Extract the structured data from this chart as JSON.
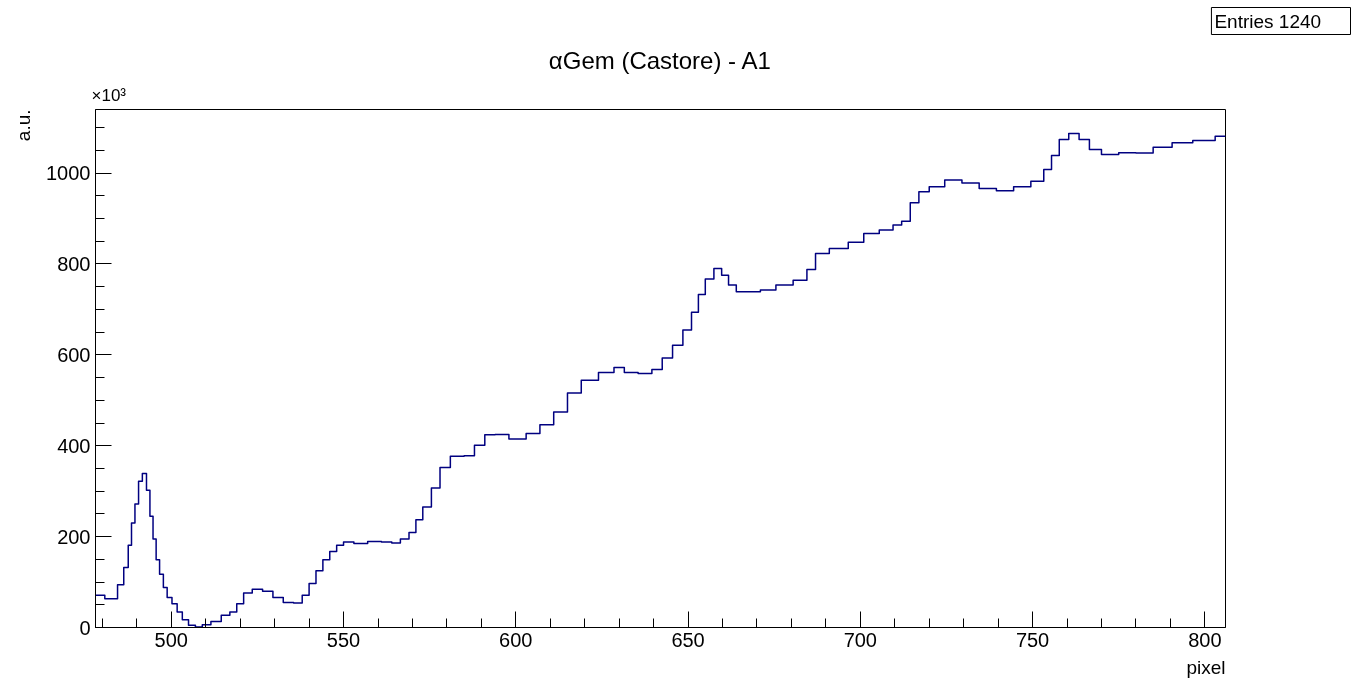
{
  "chart_data": {
    "type": "step",
    "title": "αGem (Castore) - A1",
    "xlabel": "pixel",
    "ylabel": "a.u.",
    "annotations": [
      "×10³",
      "Entries      1240"
    ],
    "xlim": [
      478,
      806
    ],
    "ylim": [
      0,
      1140
    ],
    "xticks": [
      500,
      550,
      600,
      650,
      700,
      750,
      800
    ],
    "yticks": [
      0,
      200,
      400,
      600,
      800,
      1000
    ],
    "grid": false,
    "line_style": "solid",
    "series": [
      {
        "color": "#000080",
        "x": [
          478,
          483.4,
          485.4,
          487,
          488,
          488.9,
          490,
          491,
          492.2,
          493.4,
          494.2,
          495.2,
          496,
          497.2,
          498.2,
          499.4,
          501,
          502.4,
          504,
          506,
          508,
          510,
          513,
          516,
          518,
          520,
          522,
          525,
          528,
          531,
          534,
          537,
          539,
          541,
          543,
          545,
          547,
          549,
          551,
          555,
          559,
          563,
          565,
          568,
          570,
          572,
          574,
          577,
          579,
          583,
          587,
          589,
          593,
          595,
          601,
          605,
          609,
          613,
          617,
          621,
          627,
          630,
          633,
          638,
          641,
          644,
          647,
          650,
          652,
          654,
          656,
          659,
          660.5,
          663,
          665,
          669,
          673,
          678,
          683,
          686,
          688,
          694,
          699,
          703,
          708,
          711,
          713,
          716,
          718,
          722,
          727,
          732,
          737,
          742,
          747,
          752,
          754.5,
          756.5,
          759,
          762,
          765,
          768,
          772,
          778,
          782,
          788,
          793,
          800,
          806
        ],
        "values": [
          71,
          63,
          94,
          132,
          181,
          230,
          272,
          322,
          339,
          302,
          245,
          195,
          149,
          117,
          88,
          66,
          52,
          34,
          17,
          5,
          1,
          6,
          13,
          27,
          34,
          52,
          76,
          84,
          80,
          66,
          55,
          54,
          71,
          97,
          125,
          149,
          167,
          181,
          188,
          185,
          189,
          188,
          186,
          195,
          209,
          237,
          265,
          307,
          352,
          377,
          378,
          401,
          424,
          425,
          415,
          427,
          446,
          474,
          516,
          544,
          561,
          572,
          561,
          559,
          568,
          593,
          621,
          655,
          694,
          733,
          767,
          790,
          775,
          754,
          739,
          739,
          743,
          754,
          764,
          788,
          823,
          834,
          848,
          867,
          875,
          886,
          894,
          935,
          959,
          970,
          985,
          978,
          966,
          961,
          970,
          982,
          1008,
          1039,
          1074,
          1087,
          1074,
          1052,
          1041,
          1045,
          1044,
          1057,
          1067,
          1072,
          1081
        ]
      }
    ]
  }
}
